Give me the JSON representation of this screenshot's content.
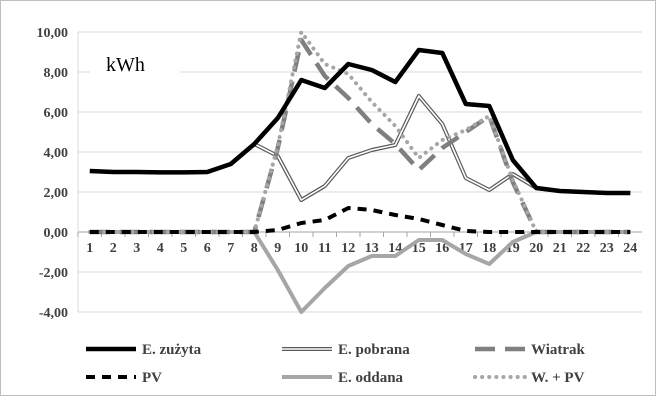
{
  "chart_data": {
    "type": "line",
    "unit_label": "kWh",
    "categories": [
      "1",
      "2",
      "3",
      "4",
      "5",
      "6",
      "7",
      "8",
      "9",
      "10",
      "11",
      "12",
      "13",
      "14",
      "15",
      "16",
      "17",
      "18",
      "19",
      "20",
      "21",
      "22",
      "23",
      "24"
    ],
    "y_ticks": [
      "10,00",
      "8,00",
      "6,00",
      "4,00",
      "2,00",
      "0,00",
      "-2,00",
      "-4,00"
    ],
    "ylim": [
      -4,
      10
    ],
    "grid": true,
    "legend_position": "bottom",
    "series": [
      {
        "name": "E. zużyta",
        "color": "#000000",
        "style": "solid-thick",
        "values": [
          3.05,
          3.0,
          3.0,
          2.98,
          2.98,
          3.0,
          3.4,
          4.4,
          5.7,
          7.6,
          7.2,
          8.4,
          8.1,
          7.5,
          9.1,
          8.95,
          6.4,
          6.3,
          3.6,
          2.2,
          2.05,
          2.0,
          1.95,
          1.95
        ]
      },
      {
        "name": "E. pobrana",
        "color": "#595959",
        "style": "double",
        "values": [
          3.05,
          3.0,
          3.0,
          2.98,
          2.98,
          3.0,
          3.4,
          4.4,
          3.8,
          1.6,
          2.3,
          3.7,
          4.1,
          4.35,
          6.8,
          5.4,
          2.7,
          2.1,
          2.9,
          2.2,
          2.05,
          2.0,
          1.95,
          1.95
        ]
      },
      {
        "name": "Wiatrak",
        "color": "#7f7f7f",
        "style": "long-dash",
        "values": [
          0,
          0,
          0,
          0,
          0,
          0,
          0,
          0,
          4.2,
          9.6,
          7.8,
          6.7,
          5.4,
          4.4,
          3.1,
          4.2,
          5.0,
          5.8,
          2.5,
          0,
          0,
          0,
          0,
          0
        ]
      },
      {
        "name": "PV",
        "color": "#000000",
        "style": "dash",
        "values": [
          0,
          0,
          0,
          0,
          0,
          0,
          0,
          0,
          0.1,
          0.45,
          0.6,
          1.2,
          1.1,
          0.85,
          0.65,
          0.35,
          0.05,
          0,
          0,
          0,
          0,
          0,
          0,
          0
        ]
      },
      {
        "name": "E. oddana",
        "color": "#a6a6a6",
        "style": "solid",
        "values": [
          0,
          0,
          0,
          0,
          0,
          0,
          0,
          0,
          -1.9,
          -4.0,
          -2.8,
          -1.7,
          -1.2,
          -1.2,
          -0.4,
          -0.4,
          -1.1,
          -1.6,
          -0.5,
          0,
          0,
          0,
          0,
          0
        ]
      },
      {
        "name": "W. + PV",
        "color": "#a6a6a6",
        "style": "dot",
        "values": [
          0,
          0,
          0,
          0,
          0,
          0,
          0,
          0,
          4.3,
          10.0,
          8.4,
          7.9,
          6.5,
          5.3,
          3.7,
          4.6,
          5.1,
          5.8,
          2.6,
          0,
          0,
          0,
          0,
          0
        ]
      }
    ]
  }
}
